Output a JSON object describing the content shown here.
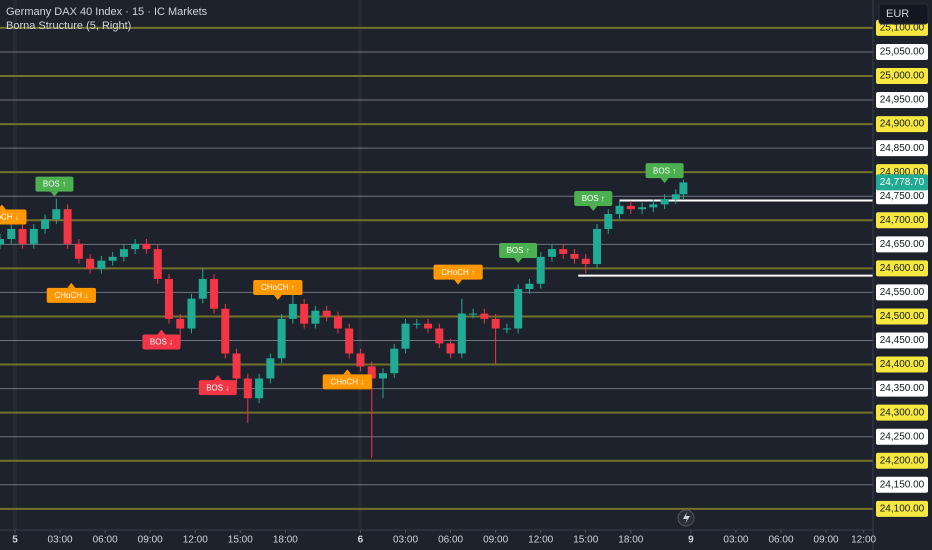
{
  "chart_data": {
    "type": "candlestick",
    "title": "Germany DAX 40 Index · 15 · IC Markets",
    "subtitle": "Borna Structure (5, Right)",
    "currency": "EUR",
    "last_price": {
      "value": 24778.7,
      "label": "24,778.70"
    },
    "up_color": "#22ab94",
    "down_color": "#f23645",
    "grid": true,
    "xlim": [
      0,
      232.5
    ],
    "ylim": [
      24056,
      25158
    ],
    "xticks": [
      {
        "value": 4,
        "label": "5"
      },
      {
        "value": 16,
        "label": "03:00"
      },
      {
        "value": 28,
        "label": "06:00"
      },
      {
        "value": 40,
        "label": "09:00"
      },
      {
        "value": 52,
        "label": "12:00"
      },
      {
        "value": 64,
        "label": "15:00"
      },
      {
        "value": 76,
        "label": "18:00"
      },
      {
        "value": 96,
        "label": "6"
      },
      {
        "value": 108,
        "label": "03:00"
      },
      {
        "value": 120,
        "label": "06:00"
      },
      {
        "value": 132,
        "label": "09:00"
      },
      {
        "value": 144,
        "label": "12:00"
      },
      {
        "value": 156,
        "label": "15:00"
      },
      {
        "value": 168,
        "label": "18:00"
      },
      {
        "value": 184,
        "label": "9"
      },
      {
        "value": 196,
        "label": "03:00"
      },
      {
        "value": 208,
        "label": "06:00"
      },
      {
        "value": 220,
        "label": "09:00"
      },
      {
        "value": 230,
        "label": "12:00"
      }
    ],
    "yticks": [
      {
        "value": 24100,
        "label": "24,100.00"
      },
      {
        "value": 24150,
        "label": "24,150.00"
      },
      {
        "value": 24200,
        "label": "24,200.00"
      },
      {
        "value": 24250,
        "label": "24,250.00"
      },
      {
        "value": 24300,
        "label": "24,300.00"
      },
      {
        "value": 24350,
        "label": "24,350.00"
      },
      {
        "value": 24400,
        "label": "24,400.00"
      },
      {
        "value": 24450,
        "label": "24,450.00"
      },
      {
        "value": 24500,
        "label": "24,500.00"
      },
      {
        "value": 24550,
        "label": "24,550.00"
      },
      {
        "value": 24600,
        "label": "24,600.00"
      },
      {
        "value": 24650,
        "label": "24,650.00"
      },
      {
        "value": 24700,
        "label": "24,700.00"
      },
      {
        "value": 24750,
        "label": "24,750.00"
      },
      {
        "value": 24800,
        "label": "24,800.00"
      },
      {
        "value": 24850,
        "label": "24,850.00"
      },
      {
        "value": 24900,
        "label": "24,900.00"
      },
      {
        "value": 24950,
        "label": "24,950.00"
      },
      {
        "value": 25000,
        "label": "25,000.00"
      },
      {
        "value": 25050,
        "label": "25,050.00"
      },
      {
        "value": 25100,
        "label": "25,100.00"
      }
    ],
    "x": [
      0,
      3,
      6,
      9,
      12,
      15,
      18,
      21,
      24,
      27,
      30,
      33,
      36,
      39,
      42,
      45,
      48,
      51,
      54,
      57,
      60,
      63,
      66,
      69,
      72,
      75,
      78,
      81,
      84,
      87,
      90,
      93,
      96,
      99,
      102,
      105,
      108,
      111,
      114,
      117,
      120,
      123,
      126,
      129,
      132,
      135,
      138,
      141,
      144,
      147,
      150,
      153,
      156,
      159,
      162,
      165,
      168,
      171,
      174,
      177,
      180,
      182
    ],
    "open": [
      24650,
      24661,
      24682,
      24651,
      24682,
      24702,
      24723,
      24651,
      24620,
      24599,
      24616,
      24624,
      24640,
      24651,
      24640,
      24578,
      24495,
      24475,
      24537,
      24578,
      24516,
      24423,
      24371,
      24330,
      24371,
      24413,
      24495,
      24526,
      24485,
      24512,
      24500,
      24475,
      24423,
      24396,
      24371,
      24382,
      24433,
      24485,
      24485,
      24475,
      24444,
      24423,
      24506,
      24506,
      24495,
      24475,
      24475,
      24557,
      24568,
      24624,
      24640,
      24630,
      24620,
      24609,
      24682,
      24713,
      24730,
      24723,
      24727,
      24733,
      24744,
      24754
    ],
    "high": [
      24672,
      24692,
      24692,
      24692,
      24712,
      24745,
      24733,
      24661,
      24630,
      24626,
      24634,
      24650,
      24661,
      24661,
      24650,
      24588,
      24505,
      24547,
      24600,
      24588,
      24526,
      24433,
      24381,
      24381,
      24423,
      24505,
      24545,
      24536,
      24522,
      24522,
      24510,
      24485,
      24433,
      24406,
      24392,
      24443,
      24495,
      24495,
      24495,
      24485,
      24454,
      24537,
      24516,
      24516,
      24505,
      24485,
      24567,
      24578,
      24634,
      24650,
      24650,
      24640,
      24630,
      24692,
      24723,
      24740,
      24740,
      24737,
      24743,
      24754,
      24764,
      24785
    ],
    "low": [
      24640,
      24651,
      24641,
      24641,
      24672,
      24692,
      24641,
      24610,
      24589,
      24589,
      24606,
      24614,
      24630,
      24630,
      24568,
      24485,
      24440,
      24465,
      24527,
      24506,
      24413,
      24361,
      24278,
      24320,
      24361,
      24403,
      24485,
      24475,
      24475,
      24490,
      24465,
      24413,
      24386,
      24206,
      24330,
      24372,
      24423,
      24475,
      24465,
      24434,
      24413,
      24413,
      24496,
      24485,
      24402,
      24465,
      24465,
      24547,
      24558,
      24614,
      24620,
      24610,
      24590,
      24599,
      24672,
      24703,
      24713,
      24713,
      24717,
      24723,
      24734,
      24744
    ],
    "close": [
      24661,
      24682,
      24651,
      24682,
      24702,
      24723,
      24651,
      24620,
      24599,
      24616,
      24624,
      24640,
      24651,
      24640,
      24578,
      24495,
      24475,
      24537,
      24578,
      24516,
      24423,
      24371,
      24330,
      24371,
      24413,
      24495,
      24526,
      24485,
      24512,
      24500,
      24475,
      24423,
      24396,
      24371,
      24382,
      24433,
      24485,
      24485,
      24475,
      24444,
      24423,
      24506,
      24506,
      24495,
      24475,
      24475,
      24557,
      24568,
      24624,
      24640,
      24630,
      24620,
      24609,
      24682,
      24713,
      24730,
      24723,
      24727,
      24733,
      24744,
      24754,
      24778.7
    ],
    "annotations": [
      {
        "text": "CHoCH ↓",
        "x": 0.5,
        "y": 24735,
        "color": "#ff9800"
      },
      {
        "text": "BOS ↑",
        "x": 14.5,
        "y": 24745,
        "color": "#4caf50"
      },
      {
        "text": "CHoCH ↓",
        "x": 19,
        "y": 24572,
        "color": "#ff9800"
      },
      {
        "text": "BOS ↓",
        "x": 43,
        "y": 24475,
        "color": "#f23645"
      },
      {
        "text": "BOS ↓",
        "x": 58,
        "y": 24380,
        "color": "#f23645"
      },
      {
        "text": "CHoCH ↑",
        "x": 74,
        "y": 24530,
        "color": "#ff9800"
      },
      {
        "text": "CHoCH ↓",
        "x": 92.5,
        "y": 24392,
        "color": "#ff9800"
      },
      {
        "text": "CHoCH ↑",
        "x": 122,
        "y": 24562,
        "color": "#ff9800"
      },
      {
        "text": "BOS ↑",
        "x": 138,
        "y": 24607,
        "color": "#4caf50"
      },
      {
        "text": "BOS ↑",
        "x": 158,
        "y": 24715,
        "color": "#4caf50"
      },
      {
        "text": "BOS ↑",
        "x": 177,
        "y": 24773,
        "color": "#4caf50"
      }
    ],
    "structure_levels": [
      {
        "x": 165,
        "y": 24741
      },
      {
        "x": 154,
        "y": 24585
      }
    ]
  }
}
